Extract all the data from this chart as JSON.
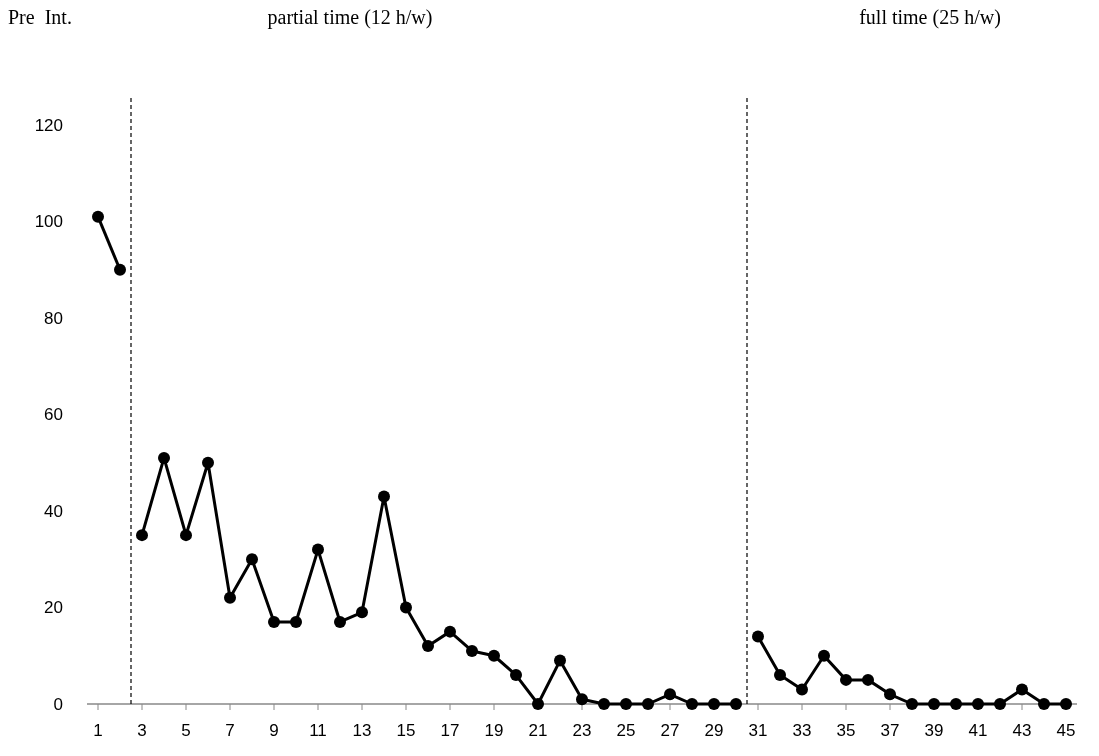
{
  "chart_data": {
    "type": "line",
    "annotations": [
      "Pre  Int.",
      "partial time (12 h/w)",
      "full time (25 h/w)"
    ],
    "xlim": [
      0.5,
      45.5
    ],
    "xticks": [
      1,
      3,
      5,
      7,
      9,
      11,
      13,
      15,
      17,
      19,
      21,
      23,
      25,
      27,
      29,
      31,
      33,
      35,
      37,
      39,
      41,
      43,
      45
    ],
    "ylim": [
      0,
      120
    ],
    "yticks": [
      0,
      20,
      40,
      60,
      80,
      100,
      120
    ],
    "grid": false,
    "marker": "circle",
    "line_style": "solid",
    "ref_lines": [
      {
        "axis": "x",
        "value": 2.5,
        "line_style": "dashed",
        "color": "#000000"
      },
      {
        "axis": "x",
        "value": 30.5,
        "line_style": "dashed",
        "color": "#000000"
      }
    ],
    "series": [
      {
        "color": "#000000",
        "x": [
          1,
          2
        ],
        "values": [
          101,
          90
        ]
      },
      {
        "color": "#000000",
        "x": [
          3,
          4,
          5,
          6,
          7,
          8,
          9,
          10,
          11,
          12,
          13,
          14,
          15,
          16,
          17,
          18,
          19,
          20,
          21,
          22,
          23,
          24,
          25,
          26,
          27,
          28,
          29,
          30
        ],
        "values": [
          35,
          51,
          35,
          50,
          22,
          30,
          17,
          17,
          32,
          17,
          19,
          43,
          20,
          12,
          15,
          11,
          10,
          6,
          0,
          9,
          1,
          0,
          0,
          0,
          2,
          0,
          0,
          0
        ]
      },
      {
        "color": "#000000",
        "x": [
          31,
          32,
          33,
          34,
          35,
          36,
          37,
          38,
          39,
          40,
          41,
          42,
          43,
          44,
          45
        ],
        "values": [
          14,
          6,
          3,
          10,
          5,
          5,
          2,
          0,
          0,
          0,
          0,
          0,
          3,
          0,
          0
        ]
      }
    ]
  }
}
